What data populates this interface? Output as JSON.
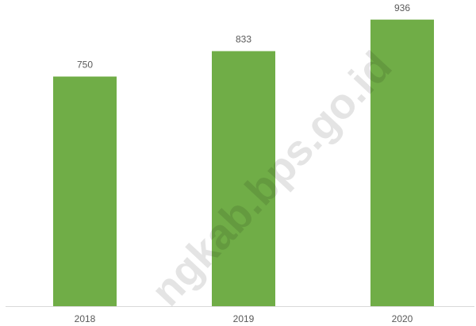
{
  "chart_data": {
    "type": "bar",
    "categories": [
      "2018",
      "2019",
      "2020"
    ],
    "values": [
      750,
      833,
      936
    ],
    "color": "#70ad47",
    "ylim": [
      0,
      1000
    ]
  },
  "watermark": "ngkab.bps.go.id"
}
